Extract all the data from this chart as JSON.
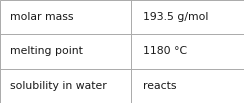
{
  "rows": [
    {
      "label": "molar mass",
      "value": "193.5 g/mol"
    },
    {
      "label": "melting point",
      "value": "1180 °C"
    },
    {
      "label": "solubility in water",
      "value": "reacts"
    }
  ],
  "col_split": 0.535,
  "background_color": "#ffffff",
  "border_color": "#aaaaaa",
  "text_color": "#1a1a1a",
  "label_fontsize": 7.8,
  "value_fontsize": 7.8,
  "fig_width": 2.44,
  "fig_height": 1.03,
  "label_bold": false,
  "value_bold": false
}
